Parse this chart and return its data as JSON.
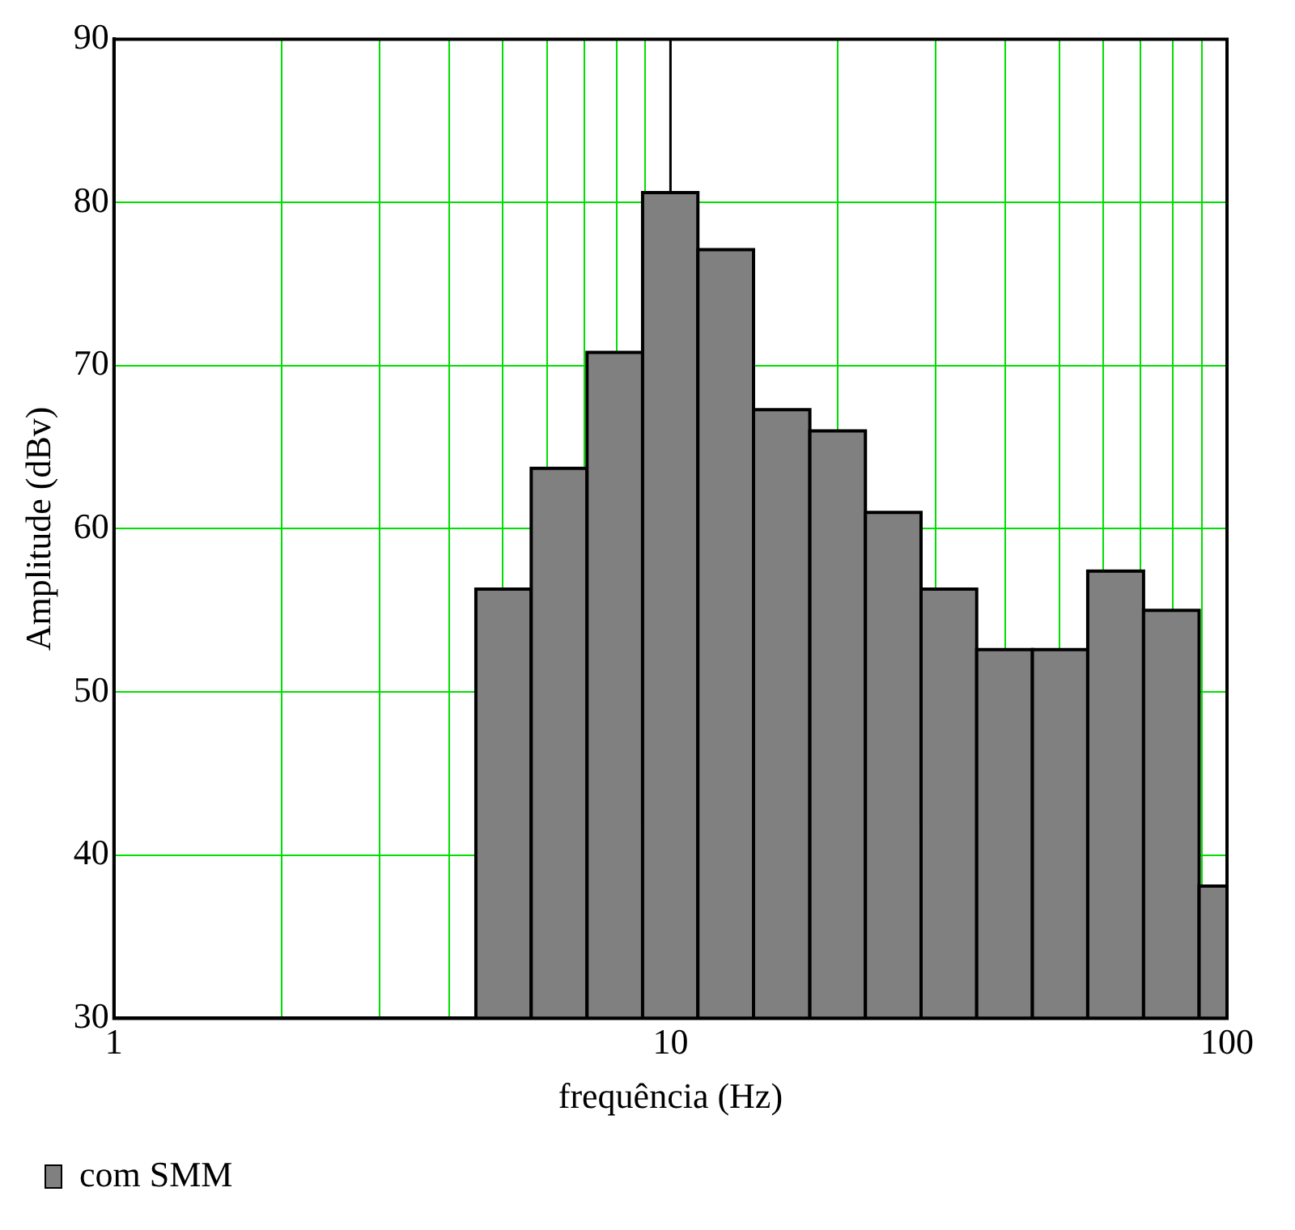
{
  "chart_data": {
    "type": "histogram",
    "xlabel": "frequência (Hz)",
    "ylabel": "Amplitude (dBv)",
    "bins": [
      4.47,
      5.62,
      7.08,
      8.91,
      11.2,
      14.1,
      17.8,
      22.4,
      28.2,
      35.5,
      44.7,
      56.2,
      70.8,
      89.1,
      100
    ],
    "series": [
      {
        "name": "com SMM",
        "color": "#808080",
        "values": [
          56.3,
          63.7,
          70.8,
          80.6,
          77.1,
          67.3,
          66.0,
          61.0,
          56.3,
          52.6,
          52.6,
          57.4,
          55.0,
          38.1
        ]
      }
    ],
    "log": "x",
    "xlim": [
      1,
      100
    ],
    "xticks": [
      1,
      {
        "value": 2,
        "label": null
      },
      {
        "value": 3,
        "label": null
      },
      {
        "value": 4,
        "label": null
      },
      {
        "value": 5,
        "label": null
      },
      {
        "value": 6,
        "label": null
      },
      {
        "value": 7,
        "label": null
      },
      {
        "value": 8,
        "label": null
      },
      {
        "value": 9,
        "label": null
      },
      10,
      {
        "value": 20,
        "label": null
      },
      {
        "value": 30,
        "label": null
      },
      {
        "value": 40,
        "label": null
      },
      {
        "value": 50,
        "label": null
      },
      {
        "value": 60,
        "label": null
      },
      {
        "value": 70,
        "label": null
      },
      {
        "value": 80,
        "label": null
      },
      {
        "value": 90,
        "label": null
      },
      100
    ],
    "ylim": [
      30,
      90
    ],
    "yticks": [
      30,
      40,
      50,
      60,
      70,
      80,
      90
    ],
    "grid": true,
    "legend": "bottom left",
    "ref_lines": [
      {
        "axis": "x",
        "value": 10,
        "color": "#000000"
      }
    ]
  }
}
